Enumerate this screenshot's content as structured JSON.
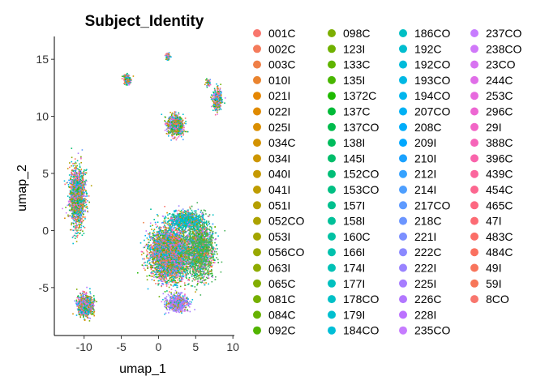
{
  "chart_data": {
    "type": "scatter",
    "title": "Subject_Identity",
    "xlabel": "umap_1",
    "ylabel": "umap_2",
    "xlim": [
      -14,
      10.2
    ],
    "ylim": [
      -9.2,
      17
    ],
    "x_ticks": [
      -10,
      -5,
      0,
      5,
      10
    ],
    "y_ticks": [
      -5,
      0,
      5,
      10,
      15
    ],
    "grid": false,
    "legend_placement": "right",
    "legend": [
      {
        "name": "001C",
        "color": "#F8766D"
      },
      {
        "name": "002C",
        "color": "#F47B5B"
      },
      {
        "name": "003C",
        "color": "#EF7F47"
      },
      {
        "name": "010I",
        "color": "#EA842F"
      },
      {
        "name": "021I",
        "color": "#E58703"
      },
      {
        "name": "022I",
        "color": "#E08B00"
      },
      {
        "name": "025I",
        "color": "#DA8F00"
      },
      {
        "name": "034C",
        "color": "#D39200"
      },
      {
        "name": "034I",
        "color": "#CD9600"
      },
      {
        "name": "040I",
        "color": "#C59900"
      },
      {
        "name": "041I",
        "color": "#BE9C00"
      },
      {
        "name": "051I",
        "color": "#B59F00"
      },
      {
        "name": "052CO",
        "color": "#ACA200"
      },
      {
        "name": "053I",
        "color": "#A3A500"
      },
      {
        "name": "056CO",
        "color": "#99A800"
      },
      {
        "name": "063I",
        "color": "#8EAB00"
      },
      {
        "name": "065C",
        "color": "#82AD00"
      },
      {
        "name": "081C",
        "color": "#75AF00"
      },
      {
        "name": "084C",
        "color": "#66B100"
      },
      {
        "name": "092C",
        "color": "#52B400"
      },
      {
        "name": "098C",
        "color": "#7CAE00"
      },
      {
        "name": "123I",
        "color": "#6FB100"
      },
      {
        "name": "133C",
        "color": "#5FB400"
      },
      {
        "name": "135I",
        "color": "#48B600"
      },
      {
        "name": "1372C",
        "color": "#1EB900"
      },
      {
        "name": "137C",
        "color": "#00BA38"
      },
      {
        "name": "137CO",
        "color": "#00BB4C"
      },
      {
        "name": "138I",
        "color": "#00BC5C"
      },
      {
        "name": "145I",
        "color": "#00BD6A"
      },
      {
        "name": "152CO",
        "color": "#00BE77"
      },
      {
        "name": "153CO",
        "color": "#00BF83"
      },
      {
        "name": "157I",
        "color": "#00C08E"
      },
      {
        "name": "158I",
        "color": "#00C099"
      },
      {
        "name": "160C",
        "color": "#00C1A3"
      },
      {
        "name": "166I",
        "color": "#00C1AD"
      },
      {
        "name": "174I",
        "color": "#00C1B6"
      },
      {
        "name": "177I",
        "color": "#00C0BF"
      },
      {
        "name": "178CO",
        "color": "#00C0C7"
      },
      {
        "name": "179I",
        "color": "#00BFCF"
      },
      {
        "name": "184CO",
        "color": "#00BED7"
      },
      {
        "name": "186CO",
        "color": "#00BFC4"
      },
      {
        "name": "192C",
        "color": "#00BDCF"
      },
      {
        "name": "192CO",
        "color": "#00BBDA"
      },
      {
        "name": "193CO",
        "color": "#00B8E4"
      },
      {
        "name": "194CO",
        "color": "#00B5ED"
      },
      {
        "name": "207CO",
        "color": "#00B1F4"
      },
      {
        "name": "208C",
        "color": "#00ADFA"
      },
      {
        "name": "209I",
        "color": "#00A8FF"
      },
      {
        "name": "210I",
        "color": "#1AA2FF"
      },
      {
        "name": "212I",
        "color": "#35A2FF"
      },
      {
        "name": "214I",
        "color": "#4E9FFF"
      },
      {
        "name": "217CO",
        "color": "#5E9AFF"
      },
      {
        "name": "218C",
        "color": "#6B95FF"
      },
      {
        "name": "221I",
        "color": "#7B8FFF"
      },
      {
        "name": "222C",
        "color": "#8B89FF"
      },
      {
        "name": "222I",
        "color": "#9983FF"
      },
      {
        "name": "225I",
        "color": "#A67DFF"
      },
      {
        "name": "226C",
        "color": "#B277FF"
      },
      {
        "name": "228I",
        "color": "#BC71FF"
      },
      {
        "name": "235CO",
        "color": "#C67CFF"
      },
      {
        "name": "237CO",
        "color": "#C77CFF"
      },
      {
        "name": "238CO",
        "color": "#D078F9"
      },
      {
        "name": "23CO",
        "color": "#D873F1"
      },
      {
        "name": "244C",
        "color": "#E06EE8"
      },
      {
        "name": "253C",
        "color": "#E76ADE"
      },
      {
        "name": "296C",
        "color": "#ED67D2"
      },
      {
        "name": "29I",
        "color": "#F265C6"
      },
      {
        "name": "388C",
        "color": "#F664B9"
      },
      {
        "name": "396C",
        "color": "#F964AB"
      },
      {
        "name": "439C",
        "color": "#FB659D"
      },
      {
        "name": "454C",
        "color": "#FC668F"
      },
      {
        "name": "465C",
        "color": "#FD6881"
      },
      {
        "name": "47I",
        "color": "#FC6B74"
      },
      {
        "name": "483C",
        "color": "#FB6E67"
      },
      {
        "name": "484C",
        "color": "#FA7160"
      },
      {
        "name": "49I",
        "color": "#F8745C"
      },
      {
        "name": "59I",
        "color": "#F77558"
      },
      {
        "name": "8CO",
        "color": "#F8766D"
      }
    ],
    "clusters": [
      {
        "cx": -11.0,
        "cy": 3.0,
        "sx": 0.9,
        "sy": 2.2,
        "n": 1700,
        "dominant": null
      },
      {
        "cx": -9.9,
        "cy": -6.5,
        "sx": 0.9,
        "sy": 0.8,
        "n": 900,
        "dominant": null
      },
      {
        "cx": 1.5,
        "cy": -2.0,
        "sx": 2.4,
        "sy": 2.0,
        "n": 4200,
        "dominant": null
      },
      {
        "cx": 5.5,
        "cy": -1.5,
        "sx": 1.6,
        "sy": 2.2,
        "n": 2600,
        "dominant": "#46B35A"
      },
      {
        "cx": 3.5,
        "cy": 1.0,
        "sx": 1.8,
        "sy": 0.6,
        "n": 900,
        "dominant": "#00BFC4"
      },
      {
        "cx": 2.5,
        "cy": -6.3,
        "sx": 1.3,
        "sy": 0.6,
        "n": 700,
        "dominant": "#A67DFF"
      },
      {
        "cx": 2.2,
        "cy": 9.3,
        "sx": 1.0,
        "sy": 0.8,
        "n": 700,
        "dominant": null
      },
      {
        "cx": 7.8,
        "cy": 11.5,
        "sx": 0.55,
        "sy": 0.9,
        "n": 320,
        "dominant": null
      },
      {
        "cx": -4.3,
        "cy": 13.3,
        "sx": 0.4,
        "sy": 0.4,
        "n": 160,
        "dominant": null
      },
      {
        "cx": 1.2,
        "cy": 15.3,
        "sx": 0.3,
        "sy": 0.3,
        "n": 50,
        "dominant": null
      },
      {
        "cx": 6.6,
        "cy": 13.0,
        "sx": 0.25,
        "sy": 0.3,
        "n": 40,
        "dominant": null
      }
    ]
  }
}
